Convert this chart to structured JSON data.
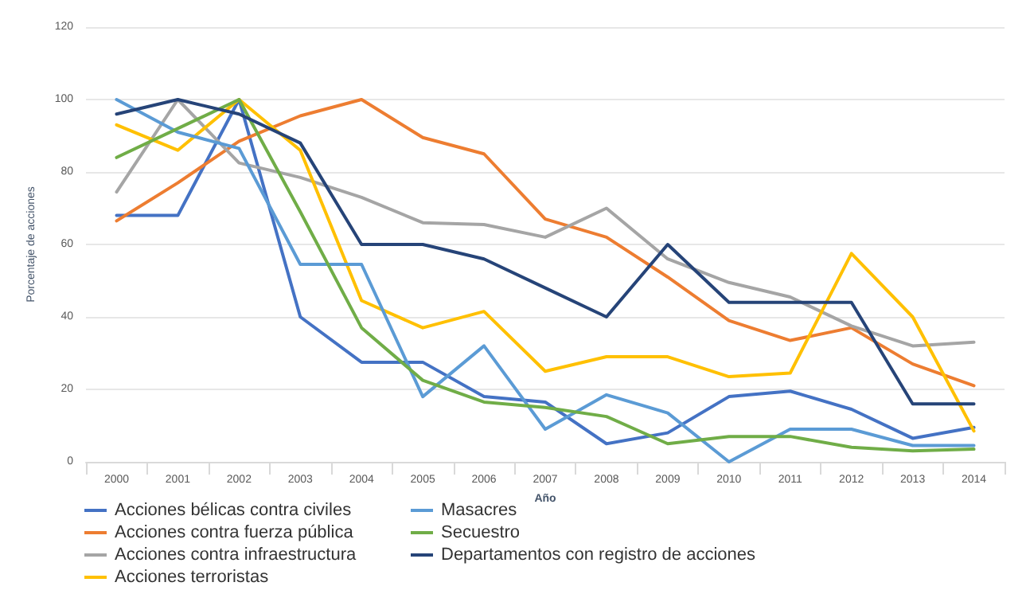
{
  "chart_data": {
    "type": "line",
    "xlabel": "Año",
    "ylabel": "Porcentaje de acciones",
    "categories": [
      "2000",
      "2001",
      "2002",
      "2003",
      "2004",
      "2005",
      "2006",
      "2007",
      "2008",
      "2009",
      "2010",
      "2011",
      "2012",
      "2013",
      "2014"
    ],
    "ylim": [
      0,
      120
    ],
    "yticks": [
      0,
      20,
      40,
      60,
      80,
      100,
      120
    ],
    "grid": "y",
    "legend": "bottom",
    "marker": "none",
    "line_style": "solid",
    "series": [
      {
        "name": "Acciones bélicas contra civiles",
        "color": "#4472c4",
        "values": [
          68,
          68,
          100,
          40,
          27.5,
          27.5,
          18,
          16.5,
          5,
          8,
          18,
          19.5,
          14.5,
          6.5,
          9.5
        ]
      },
      {
        "name": "Acciones contra fuerza pública",
        "color": "#ed7d31",
        "values": [
          66.5,
          77,
          88.5,
          95.5,
          100,
          89.5,
          85,
          67,
          62,
          51,
          39,
          33.5,
          37,
          27,
          21
        ]
      },
      {
        "name": "Acciones contra infraestructura",
        "color": "#a5a5a5",
        "values": [
          74.5,
          100,
          82.5,
          78.5,
          73,
          66,
          65.5,
          62,
          70,
          56,
          49.5,
          45.5,
          37.5,
          32,
          33
        ]
      },
      {
        "name": "Acciones terroristas",
        "color": "#ffc000",
        "values": [
          93,
          86,
          100,
          86,
          44.5,
          37,
          41.5,
          25,
          29,
          29,
          23.5,
          24.5,
          57.5,
          40,
          8.5
        ]
      },
      {
        "name": "Masacres",
        "color": "#5b9bd5",
        "values": [
          100,
          91,
          86.5,
          54.5,
          54.5,
          18,
          32,
          9,
          18.5,
          13.5,
          0,
          9,
          9,
          4.5,
          4.5
        ]
      },
      {
        "name": "Secuestro",
        "color": "#70ad47",
        "values": [
          84,
          92,
          100,
          69,
          37,
          22.5,
          16.5,
          15,
          12.5,
          5,
          7,
          7,
          4,
          3,
          3.5
        ]
      },
      {
        "name": "Departamentos con registro de acciones",
        "color": "#264478",
        "values": [
          96,
          100,
          96,
          88,
          60,
          60,
          56,
          48,
          40,
          60,
          44,
          44,
          44,
          16,
          16
        ]
      }
    ]
  }
}
